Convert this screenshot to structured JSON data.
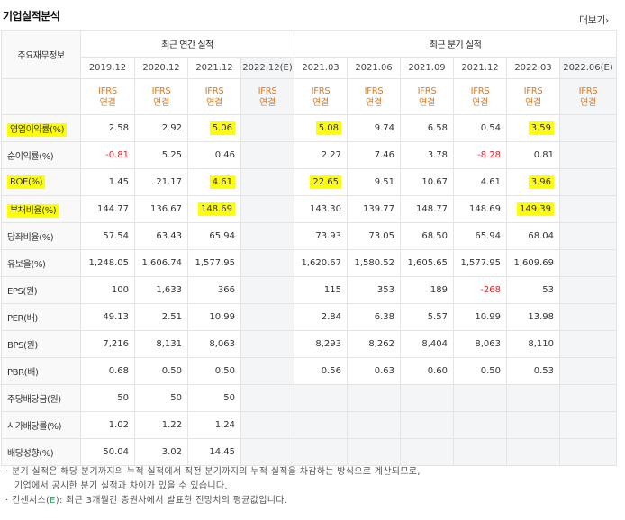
{
  "title": "기업실적분석",
  "more_label": "더보기",
  "more_arrow": "›",
  "header": {
    "row_label": "주요재무정보",
    "annual_group": "최근 연간 실적",
    "quarter_group": "최근 분기 실적",
    "annual_dates": [
      "2019.12",
      "2020.12",
      "2021.12",
      "2022.12(E)"
    ],
    "quarter_dates": [
      "2021.03",
      "2021.06",
      "2021.09",
      "2021.12",
      "2022.03",
      "2022.06(E)"
    ],
    "ifrs": "IFRS",
    "consolidated": "연결"
  },
  "rows": [
    {
      "label": "영업이익률(%)",
      "annual": [
        "2.58",
        "2.92",
        "5.06",
        ""
      ],
      "quarter": [
        "5.08",
        "9.74",
        "6.58",
        "0.54",
        "3.59",
        ""
      ]
    },
    {
      "label": "순이익률(%)",
      "annual": [
        "-0.81",
        "5.25",
        "0.46",
        ""
      ],
      "quarter": [
        "2.27",
        "7.46",
        "3.78",
        "-8.28",
        "0.81",
        ""
      ]
    },
    {
      "label": "ROE(%)",
      "annual": [
        "1.45",
        "21.17",
        "4.61",
        ""
      ],
      "quarter": [
        "22.65",
        "9.51",
        "10.67",
        "4.61",
        "3.96",
        ""
      ]
    },
    {
      "label": "부채비율(%)",
      "annual": [
        "144.77",
        "136.67",
        "148.69",
        ""
      ],
      "quarter": [
        "143.30",
        "139.77",
        "148.77",
        "148.69",
        "149.39",
        ""
      ]
    },
    {
      "label": "당좌비율(%)",
      "annual": [
        "57.54",
        "63.43",
        "65.94",
        ""
      ],
      "quarter": [
        "73.93",
        "73.05",
        "68.50",
        "65.94",
        "68.04",
        ""
      ]
    },
    {
      "label": "유보율(%)",
      "annual": [
        "1,248.05",
        "1,606.74",
        "1,577.95",
        ""
      ],
      "quarter": [
        "1,620.67",
        "1,580.52",
        "1,605.65",
        "1,577.95",
        "1,609.69",
        ""
      ]
    },
    {
      "label": "EPS(원)",
      "annual": [
        "100",
        "1,633",
        "366",
        ""
      ],
      "quarter": [
        "115",
        "353",
        "189",
        "-268",
        "53",
        ""
      ]
    },
    {
      "label": "PER(배)",
      "annual": [
        "49.13",
        "2.51",
        "10.99",
        ""
      ],
      "quarter": [
        "2.84",
        "6.38",
        "5.57",
        "10.99",
        "13.98",
        ""
      ]
    },
    {
      "label": "BPS(원)",
      "annual": [
        "7,216",
        "8,131",
        "8,063",
        ""
      ],
      "quarter": [
        "8,293",
        "8,262",
        "8,404",
        "8,063",
        "8,110",
        ""
      ]
    },
    {
      "label": "PBR(배)",
      "annual": [
        "0.68",
        "0.50",
        "0.50",
        ""
      ],
      "quarter": [
        "0.56",
        "0.63",
        "0.60",
        "0.50",
        "0.53",
        ""
      ]
    },
    {
      "label": "주당배당금(원)",
      "annual": [
        "50",
        "50",
        "50",
        ""
      ],
      "quarter": [
        "",
        "",
        "",
        "",
        "",
        ""
      ]
    },
    {
      "label": "시가배당률(%)",
      "annual": [
        "1.02",
        "1.22",
        "1.24",
        ""
      ],
      "quarter": [
        "",
        "",
        "",
        "",
        "",
        ""
      ]
    },
    {
      "label": "배당성향(%)",
      "annual": [
        "50.04",
        "3.02",
        "14.45",
        ""
      ],
      "quarter": [
        "",
        "",
        "",
        "",
        "",
        ""
      ]
    }
  ],
  "notes": {
    "line1": "· 분기 실적은 해당 분기까지의 누적 실적에서 직전 분기까지의 누적 실적을 차감하는 방식으로 계산되므로,",
    "line2": "기업에서 공시한 분기 실적과 차이가 있을 수 있습니다.",
    "line3_prefix": "· 컨센서스(",
    "line3_e": "E",
    "line3_suffix": "): 최근 3개월간 증권사에서 발표한 전망치의 평균값입니다."
  },
  "colors": {
    "ifrs": "#e07b1f",
    "negative": "#e0242a",
    "highlight": "#ffff00",
    "consensus_e": "#2a9c5a"
  }
}
